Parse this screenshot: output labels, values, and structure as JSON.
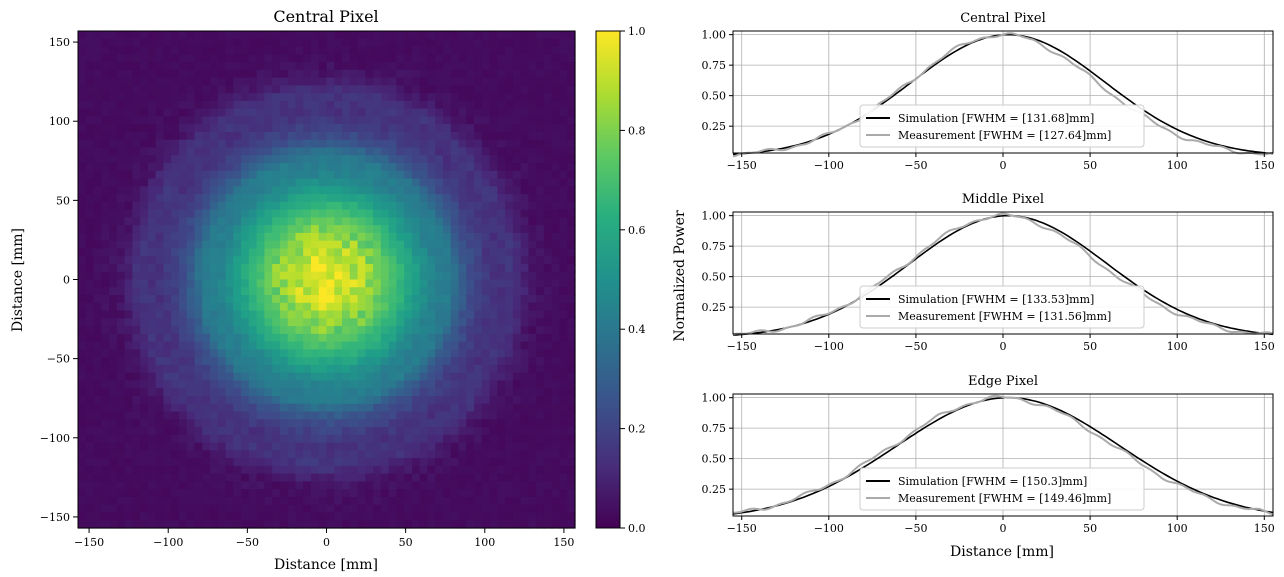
{
  "chart_data": [
    {
      "type": "heatmap",
      "title": "Central Pixel",
      "xlabel": "Distance [mm]",
      "ylabel": "Distance [mm]",
      "xlim": [
        -157,
        157
      ],
      "ylim": [
        -157,
        157
      ],
      "xticks": [
        "−150",
        "−100",
        "−50",
        "0",
        "50",
        "100",
        "150"
      ],
      "yticks": [
        "150",
        "100",
        "50",
        "0",
        "−50",
        "−100",
        "−150"
      ],
      "grid_size": 64,
      "colormap": "viridis",
      "colorbar": {
        "range": [
          0.0,
          1.0
        ],
        "ticks": [
          "0.0",
          "0.2",
          "0.4",
          "0.6",
          "0.8",
          "1.0"
        ]
      },
      "beam_fwhm_mm": 127.64,
      "ring_radii_mm": [
        78,
        118
      ]
    },
    {
      "type": "line",
      "title": "Central Pixel",
      "xlim": [
        -155,
        155
      ],
      "ylim": [
        0.03,
        1.03
      ],
      "xticks": [
        "−150",
        "−100",
        "−50",
        "0",
        "50",
        "100",
        "150"
      ],
      "yticks": [
        "1.00",
        "0.75",
        "0.50",
        "0.25"
      ],
      "grid": true,
      "legend_position": "lower-center",
      "series": [
        {
          "name": "Simulation [FWHM = [131.68]mm]",
          "color": "#000000",
          "fwhm": 131.68
        },
        {
          "name": "Measurement [FWHM = [127.64]mm]",
          "color": "#aaaaaa",
          "fwhm": 127.64
        }
      ]
    },
    {
      "type": "line",
      "title": "Middle Pixel",
      "xlim": [
        -155,
        155
      ],
      "ylim": [
        0.03,
        1.03
      ],
      "xticks": [
        "−150",
        "−100",
        "−50",
        "0",
        "50",
        "100",
        "150"
      ],
      "yticks": [
        "1.00",
        "0.75",
        "0.50",
        "0.25"
      ],
      "grid": true,
      "legend_position": "lower-center",
      "series": [
        {
          "name": "Simulation [FWHM = [133.53]mm]",
          "color": "#000000",
          "fwhm": 133.53
        },
        {
          "name": "Measurement [FWHM = [131.56]mm]",
          "color": "#aaaaaa",
          "fwhm": 131.56
        }
      ]
    },
    {
      "type": "line",
      "title": "Edge Pixel",
      "xlabel": "Distance [mm]",
      "xlim": [
        -155,
        155
      ],
      "ylim": [
        0.03,
        1.03
      ],
      "xticks": [
        "−150",
        "−100",
        "−50",
        "0",
        "50",
        "100",
        "150"
      ],
      "yticks": [
        "1.00",
        "0.75",
        "0.50",
        "0.25"
      ],
      "grid": true,
      "legend_position": "lower-center",
      "series": [
        {
          "name": "Simulation [FWHM = [150.3]mm]",
          "color": "#000000",
          "fwhm": 150.3
        },
        {
          "name": "Measurement [FWHM = [149.46]mm]",
          "color": "#aaaaaa",
          "fwhm": 149.46
        }
      ]
    }
  ],
  "shared_ylabel": "Normalized Power"
}
